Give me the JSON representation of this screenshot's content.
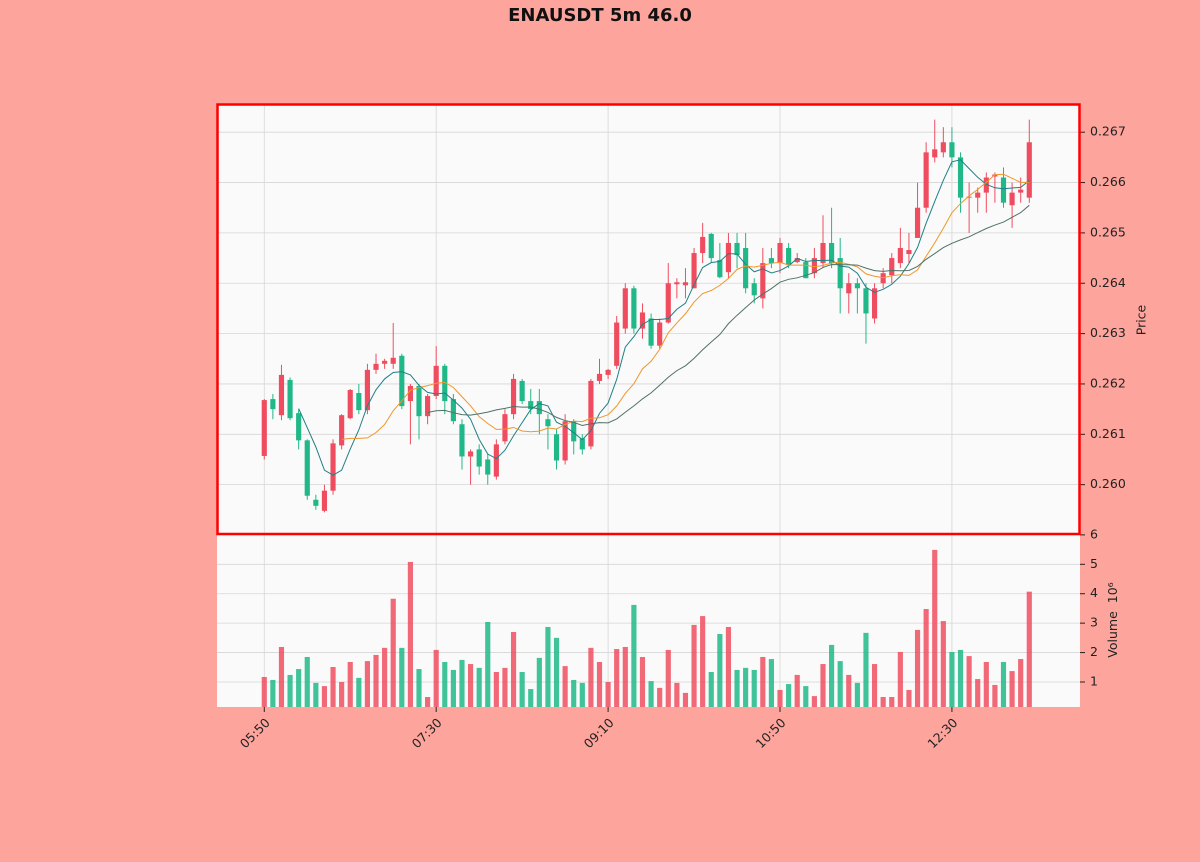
{
  "chart_data": {
    "type": "candlestick",
    "title": "ENAUSDT 5m 46.0",
    "ylabel": "Price",
    "volume_label": "Volume",
    "volume_offset_label": "10⁶",
    "up_color": "#ef4d5f",
    "down_color": "#20b888",
    "mav": [
      5,
      10,
      20
    ],
    "mav_colors": [
      "#1f7f86",
      "#f0962a",
      "#4f7266"
    ],
    "grid": true,
    "xlim": [
      -5.5,
      94.9
    ],
    "xticks": [
      {
        "value": 0,
        "label": "05:50"
      },
      {
        "value": 20,
        "label": "07:30"
      },
      {
        "value": 40,
        "label": "09:10"
      },
      {
        "value": 60,
        "label": "10:50"
      },
      {
        "value": 80,
        "label": "12:30"
      }
    ],
    "ylim": [
      0.25902,
      0.26756
    ],
    "yticks": [
      {
        "value": 0.26,
        "label": "0.260"
      },
      0.261,
      0.262,
      0.263,
      0.264,
      0.265,
      0.266,
      0.267
    ],
    "volume_ylim": [
      0.15,
      6.03
    ],
    "volume_yticks": [
      1,
      2,
      3,
      4,
      5,
      6
    ],
    "open": [
      0.26057,
      0.2617,
      0.26138,
      0.26208,
      0.26142,
      0.26088,
      0.2597,
      0.25948,
      0.25988,
      0.26078,
      0.26132,
      0.26182,
      0.26148,
      0.26228,
      0.2624,
      0.2624,
      0.26256,
      0.26166,
      0.26196,
      0.26136,
      0.26176,
      0.26236,
      0.2617,
      0.2612,
      0.26056,
      0.2607,
      0.2605,
      0.26016,
      0.26086,
      0.2614,
      0.26206,
      0.26166,
      0.26166,
      0.2613,
      0.261,
      0.26048,
      0.26126,
      0.26092,
      0.26076,
      0.26206,
      0.26218,
      0.26236,
      0.2631,
      0.2639,
      0.2631,
      0.2633,
      0.26276,
      0.26322,
      0.26398,
      0.26396,
      0.2639,
      0.2646,
      0.26498,
      0.26446,
      0.26422,
      0.2648,
      0.2647,
      0.264,
      0.2637,
      0.2645,
      0.2644,
      0.2647,
      0.26442,
      0.26442,
      0.2642,
      0.2644,
      0.2648,
      0.2645,
      0.2638,
      0.264,
      0.2639,
      0.2633,
      0.264,
      0.26416,
      0.2644,
      0.26458,
      0.2649,
      0.2655,
      0.2665,
      0.2666,
      0.2668,
      0.2665,
      0.2657,
      0.2657,
      0.2658,
      0.26612,
      0.2661,
      0.26555,
      0.2658,
      0.2657
    ],
    "high": [
      0.2617,
      0.2618,
      0.26238,
      0.26213,
      0.2615,
      0.2609,
      0.2598,
      0.26,
      0.2609,
      0.2614,
      0.2619,
      0.262,
      0.2624,
      0.2626,
      0.2625,
      0.26321,
      0.2626,
      0.262,
      0.262,
      0.2618,
      0.26275,
      0.2624,
      0.2618,
      0.2613,
      0.2607,
      0.2608,
      0.2606,
      0.2609,
      0.2615,
      0.2622,
      0.2621,
      0.2619,
      0.2619,
      0.2614,
      0.2611,
      0.2614,
      0.2613,
      0.261,
      0.2621,
      0.2625,
      0.2623,
      0.26335,
      0.264,
      0.26395,
      0.2636,
      0.2634,
      0.2633,
      0.2644,
      0.2641,
      0.2643,
      0.2647,
      0.2652,
      0.265,
      0.2648,
      0.265,
      0.265,
      0.265,
      0.2641,
      0.2647,
      0.2647,
      0.2649,
      0.2648,
      0.2646,
      0.2645,
      0.2647,
      0.26535,
      0.2655,
      0.2649,
      0.2642,
      0.2641,
      0.264,
      0.264,
      0.2643,
      0.2646,
      0.2651,
      0.265,
      0.266,
      0.2668,
      0.26725,
      0.2671,
      0.2671,
      0.2666,
      0.266,
      0.2659,
      0.2662,
      0.2662,
      0.2663,
      0.266,
      0.2661,
      0.26725
    ],
    "low": [
      0.2605,
      0.2613,
      0.26128,
      0.26128,
      0.2607,
      0.2597,
      0.2595,
      0.25945,
      0.2598,
      0.2607,
      0.2613,
      0.2614,
      0.2614,
      0.2622,
      0.2623,
      0.2623,
      0.2615,
      0.2608,
      0.2609,
      0.2612,
      0.2617,
      0.2614,
      0.2612,
      0.2603,
      0.26,
      0.2602,
      0.26,
      0.2601,
      0.2608,
      0.2613,
      0.2616,
      0.2614,
      0.261,
      0.2607,
      0.2603,
      0.2604,
      0.2606,
      0.2606,
      0.2607,
      0.262,
      0.2621,
      0.2623,
      0.263,
      0.263,
      0.2629,
      0.2627,
      0.2627,
      0.2632,
      0.2637,
      0.2637,
      0.2639,
      0.2644,
      0.2644,
      0.2641,
      0.2641,
      0.2643,
      0.2638,
      0.2636,
      0.2635,
      0.2643,
      0.2642,
      0.2643,
      0.2644,
      0.2641,
      0.2641,
      0.2643,
      0.2643,
      0.2634,
      0.2634,
      0.2634,
      0.2628,
      0.2632,
      0.2639,
      0.264,
      0.2643,
      0.2644,
      0.2649,
      0.2654,
      0.2664,
      0.2665,
      0.2663,
      0.2654,
      0.265,
      0.2654,
      0.2654,
      0.2656,
      0.2655,
      0.2651,
      0.2656,
      0.2656
    ],
    "close": [
      0.26168,
      0.2615,
      0.26218,
      0.26132,
      0.26088,
      0.25978,
      0.25958,
      0.25988,
      0.26082,
      0.26138,
      0.26188,
      0.26148,
      0.26228,
      0.2624,
      0.26246,
      0.26252,
      0.26156,
      0.26196,
      0.26136,
      0.26176,
      0.26236,
      0.26166,
      0.26126,
      0.26056,
      0.26066,
      0.26036,
      0.2602,
      0.2608,
      0.2614,
      0.2621,
      0.26166,
      0.2615,
      0.2614,
      0.26116,
      0.26048,
      0.26126,
      0.26086,
      0.2607,
      0.26206,
      0.2622,
      0.26228,
      0.26322,
      0.2639,
      0.2631,
      0.26342,
      0.26276,
      0.26322,
      0.264,
      0.26402,
      0.26402,
      0.2646,
      0.26492,
      0.2645,
      0.26412,
      0.2648,
      0.26456,
      0.2639,
      0.26376,
      0.2644,
      0.2644,
      0.2648,
      0.26436,
      0.2645,
      0.2641,
      0.2645,
      0.2648,
      0.2644,
      0.2639,
      0.264,
      0.2639,
      0.2634,
      0.2639,
      0.2642,
      0.2645,
      0.2647,
      0.26466,
      0.2655,
      0.2666,
      0.26666,
      0.2668,
      0.2665,
      0.2657,
      0.26572,
      0.2658,
      0.2661,
      0.26616,
      0.2656,
      0.2658,
      0.26586,
      0.2668
    ],
    "volume": [
      1.17,
      1.07,
      2.19,
      1.24,
      1.44,
      1.85,
      0.97,
      0.86,
      1.51,
      1.0,
      1.68,
      1.14,
      1.71,
      1.92,
      2.16,
      3.83,
      2.16,
      5.08,
      1.44,
      0.49,
      2.09,
      1.68,
      1.41,
      1.75,
      1.61,
      1.48,
      3.04,
      1.34,
      1.48,
      2.7,
      1.34,
      0.76,
      1.82,
      2.87,
      2.5,
      1.54,
      1.07,
      0.97,
      2.16,
      1.68,
      1.0,
      2.12,
      2.19,
      3.62,
      1.85,
      1.03,
      0.8,
      2.09,
      0.97,
      0.63,
      2.94,
      3.24,
      1.34,
      2.63,
      2.87,
      1.41,
      1.48,
      1.41,
      1.85,
      1.78,
      0.73,
      0.93,
      1.24,
      0.86,
      0.52,
      1.61,
      2.26,
      1.71,
      1.24,
      0.97,
      2.67,
      1.61,
      0.49,
      0.49,
      2.02,
      0.73,
      2.77,
      3.48,
      5.49,
      3.07,
      2.02,
      2.09,
      1.88,
      1.1,
      1.68,
      0.9,
      1.68,
      1.37,
      1.78,
      4.07
    ]
  }
}
